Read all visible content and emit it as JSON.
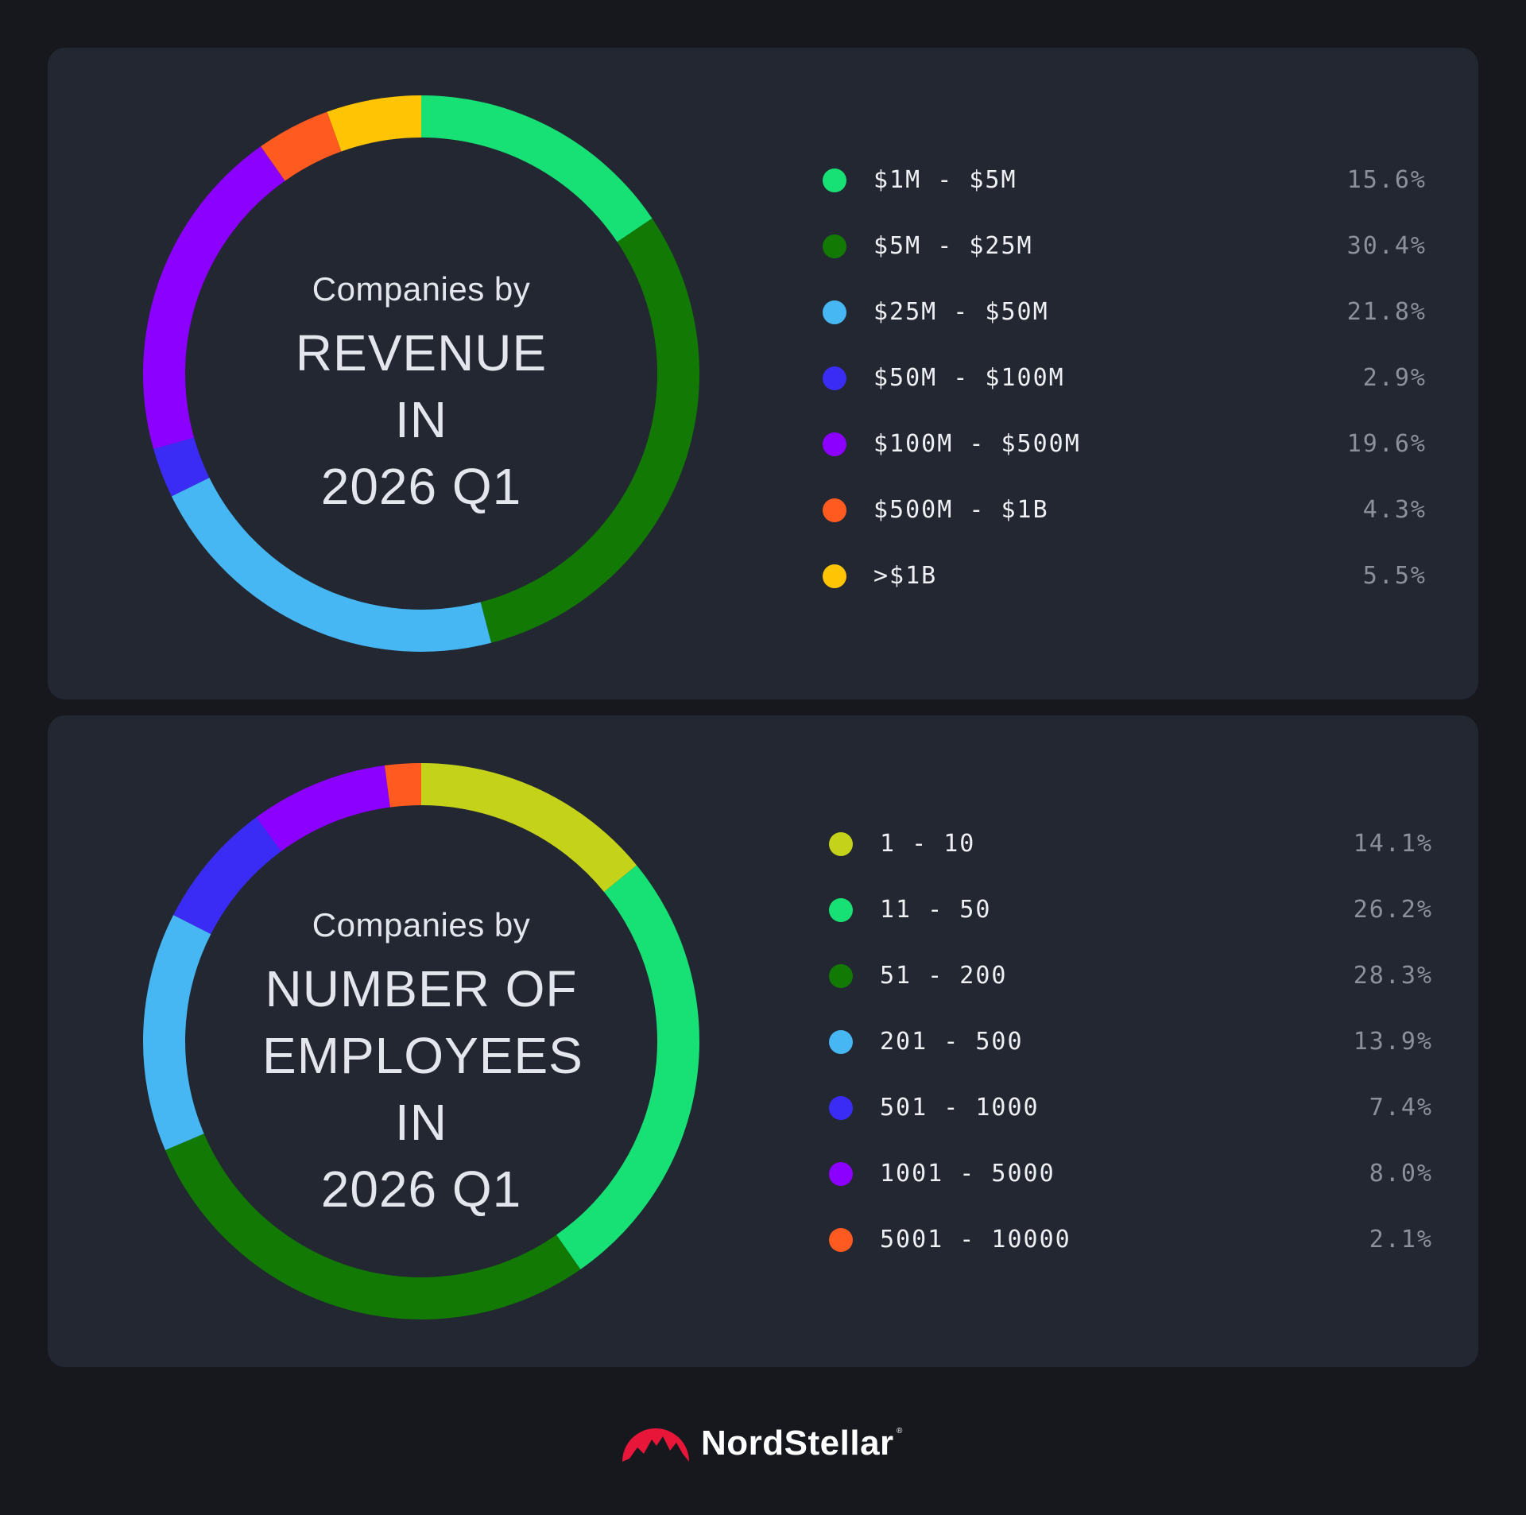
{
  "chart_data": [
    {
      "type": "pie",
      "title_small": "Companies by",
      "title_main_lines": [
        "REVENUE IN",
        "2026 Q1"
      ],
      "categories": [
        "$1M - $5M",
        "$5M - $25M",
        "$25M - $50M",
        "$50M - $100M",
        "$100M - $500M",
        "$500M - $1B",
        ">$1B"
      ],
      "values": [
        15.6,
        30.4,
        21.8,
        2.9,
        19.6,
        4.3,
        5.5
      ],
      "value_labels": [
        "15.6%",
        "30.4%",
        "21.8%",
        "2.9%",
        "19.6%",
        "4.3%",
        "5.5%"
      ],
      "colors": [
        "#17e074",
        "#127a04",
        "#46b7f2",
        "#3a2cf5",
        "#8b00ff",
        "#ff5a1f",
        "#ffc505"
      ],
      "style": "donut",
      "legend": "right"
    },
    {
      "type": "pie",
      "title_small": "Companies by",
      "title_main_lines": [
        "NUMBER OF",
        "EMPLOYEES IN",
        "2026 Q1"
      ],
      "categories": [
        "1 - 10",
        "11 - 50",
        "51 - 200",
        "201 - 500",
        "501 - 1000",
        "1001 - 5000",
        "5001 - 10000"
      ],
      "values": [
        14.1,
        26.2,
        28.3,
        13.9,
        7.4,
        8.0,
        2.1
      ],
      "value_labels": [
        "14.1%",
        "26.2%",
        "28.3%",
        "13.9%",
        "7.4%",
        "8.0%",
        "2.1%"
      ],
      "colors": [
        "#c4d21a",
        "#17e074",
        "#127a04",
        "#46b7f2",
        "#3a2cf5",
        "#8b00ff",
        "#ff5a1f"
      ],
      "style": "donut",
      "legend": "right"
    }
  ],
  "brand": {
    "name": "NordStellar",
    "registered_mark": "®",
    "logo_color": "#e8173a"
  }
}
